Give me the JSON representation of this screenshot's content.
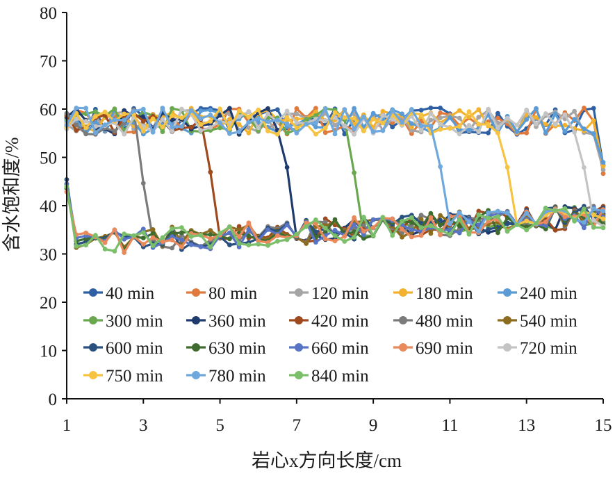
{
  "chart_data": {
    "type": "line",
    "xlabel": "岩心x方向长度/cm",
    "ylabel": "含水饱和度/%",
    "xlim": [
      1,
      15
    ],
    "ylim": [
      0,
      80
    ],
    "x_ticks": [
      1,
      3,
      5,
      7,
      9,
      11,
      13,
      15
    ],
    "y_ticks": [
      0,
      10,
      20,
      30,
      40,
      50,
      60,
      70,
      80
    ],
    "grid": false,
    "legend_position": "bottom-inside",
    "legend_columns": 5,
    "series": [
      {
        "name": "40 min",
        "color": "#2e5fa3",
        "front_x": 15.0
      },
      {
        "name": "80 min",
        "color": "#e07a3c",
        "front_x": 15.0
      },
      {
        "name": "120 min",
        "color": "#a5a5a5",
        "front_x": 15.0
      },
      {
        "name": "180 min",
        "color": "#f2b12e",
        "front_x": 15.0
      },
      {
        "name": "240 min",
        "color": "#5b9bd5",
        "front_x": 15.0
      },
      {
        "name": "300 min",
        "color": "#6aa84f",
        "front_x": 8.6
      },
      {
        "name": "360 min",
        "color": "#1f3b6e",
        "front_x": 6.8
      },
      {
        "name": "420 min",
        "color": "#9e4a1e",
        "front_x": 4.8
      },
      {
        "name": "480 min",
        "color": "#7b7b7b",
        "front_x": 2.9
      },
      {
        "name": "540 min",
        "color": "#8c6d1f",
        "front_x": 1.0
      },
      {
        "name": "600 min",
        "color": "#29507f",
        "front_x": 1.0
      },
      {
        "name": "630 min",
        "color": "#3f6b2f",
        "front_x": 1.0
      },
      {
        "name": "660 min",
        "color": "#5874c4",
        "front_x": 1.0
      },
      {
        "name": "690 min",
        "color": "#e88a5c",
        "front_x": 1.0
      },
      {
        "name": "720 min",
        "color": "#c4c4c4",
        "front_x": 14.5
      },
      {
        "name": "750 min",
        "color": "#f6c342",
        "front_x": 12.6
      },
      {
        "name": "780 min",
        "color": "#6fa8dc",
        "front_x": 10.8
      },
      {
        "name": "840 min",
        "color": "#7cbf6a",
        "front_x": 1.0
      }
    ]
  }
}
